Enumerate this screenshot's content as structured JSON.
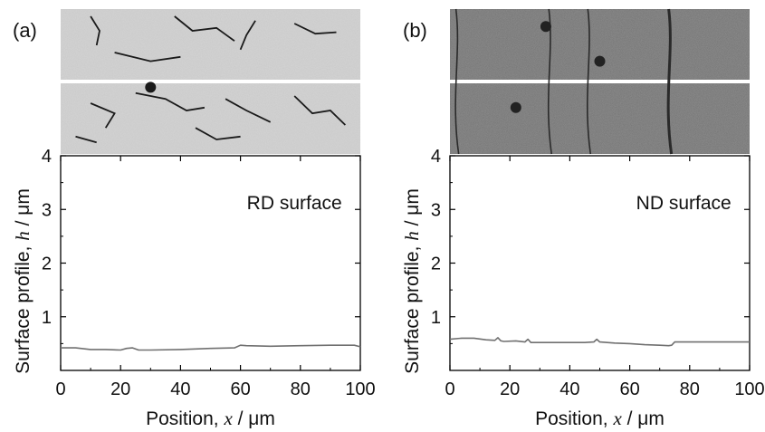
{
  "chart_data": [
    {
      "type": "line",
      "panel_label": "(a)",
      "annotation": "RD surface",
      "xlabel": {
        "prefix": "Position, ",
        "var": "x",
        "unit": " / μm"
      },
      "ylabel": {
        "prefix": "Surface profile, ",
        "var": "h",
        "unit": " / μm"
      },
      "xlim": [
        0,
        100
      ],
      "ylim": [
        0,
        4
      ],
      "xticks": [
        "0",
        "20",
        "40",
        "60",
        "80",
        "100"
      ],
      "yticks": [
        "1",
        "2",
        "3",
        "4"
      ],
      "grid": false,
      "line_color": "#707070",
      "micrograph": {
        "style": "light-gray-with-dark-cracks",
        "layers": 2
      },
      "series": [
        {
          "x": [
            0,
            5,
            10,
            15,
            20,
            22,
            24,
            26,
            30,
            40,
            50,
            58,
            60,
            62,
            70,
            80,
            90,
            98,
            100
          ],
          "y": [
            0.42,
            0.42,
            0.39,
            0.39,
            0.38,
            0.41,
            0.42,
            0.38,
            0.38,
            0.39,
            0.41,
            0.42,
            0.47,
            0.46,
            0.45,
            0.46,
            0.47,
            0.47,
            0.44
          ]
        }
      ]
    },
    {
      "type": "line",
      "panel_label": "(b)",
      "annotation": "ND surface",
      "xlabel": {
        "prefix": "Position, ",
        "var": "x",
        "unit": " / μm"
      },
      "ylabel": {
        "prefix": "Surface profile, ",
        "var": "h",
        "unit": " / μm"
      },
      "xlim": [
        0,
        100
      ],
      "ylim": [
        0,
        4
      ],
      "xticks": [
        "0",
        "20",
        "40",
        "60",
        "80",
        "100"
      ],
      "yticks": [
        "1",
        "2",
        "3",
        "4"
      ],
      "grid": false,
      "line_color": "#707070",
      "micrograph": {
        "style": "dark-gray-textured-with-vertical-lines",
        "layers": 2
      },
      "series": [
        {
          "x": [
            0,
            4,
            8,
            12,
            15,
            16,
            17,
            18,
            22,
            25,
            26,
            27,
            32,
            40,
            45,
            48,
            49,
            50,
            55,
            60,
            65,
            70,
            73,
            74,
            75,
            78,
            85,
            95,
            100
          ],
          "y": [
            0.58,
            0.6,
            0.6,
            0.57,
            0.56,
            0.61,
            0.55,
            0.54,
            0.55,
            0.53,
            0.58,
            0.52,
            0.52,
            0.52,
            0.52,
            0.53,
            0.58,
            0.53,
            0.51,
            0.5,
            0.48,
            0.47,
            0.46,
            0.47,
            0.53,
            0.53,
            0.53,
            0.53,
            0.53
          ]
        }
      ]
    }
  ]
}
